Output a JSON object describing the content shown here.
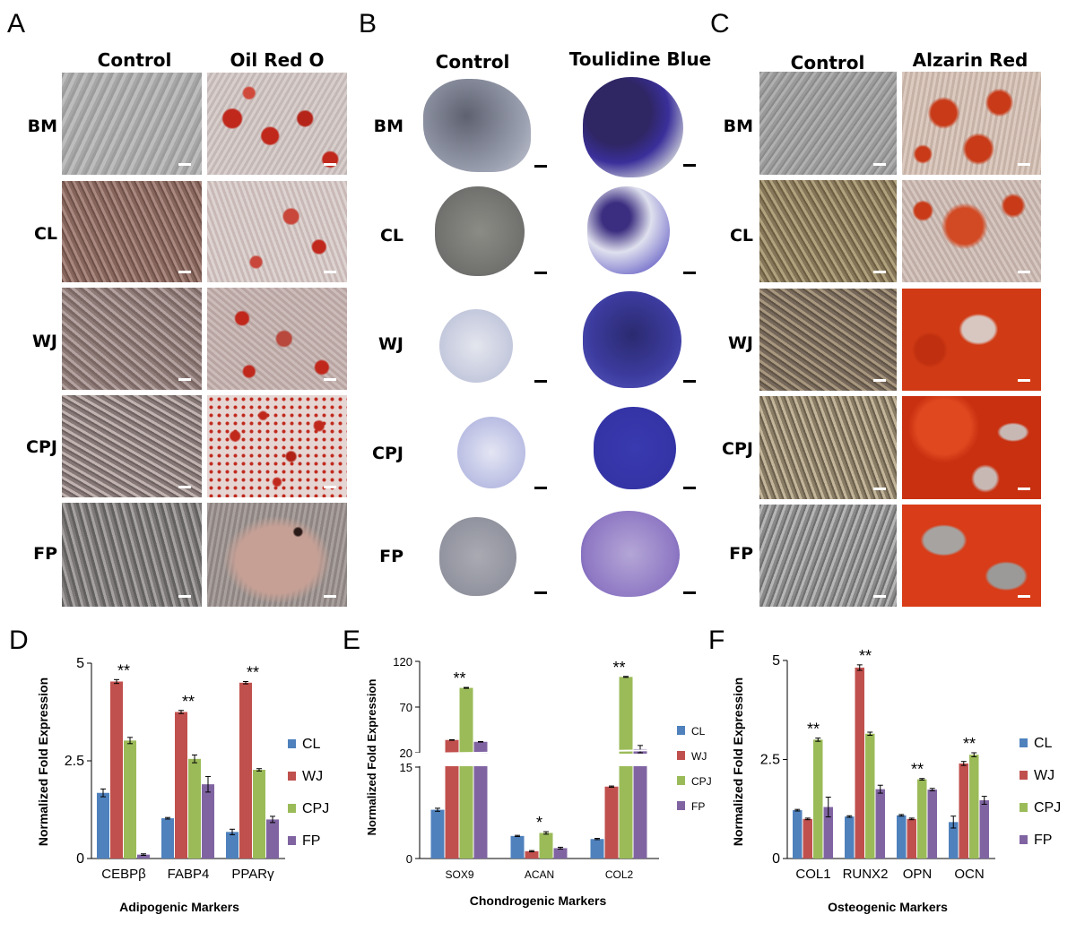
{
  "panels": {
    "A": {
      "letter": "A",
      "columns": [
        "Control",
        "Oil Red O"
      ],
      "rows": [
        "BM",
        "CL",
        "WJ",
        "CPJ",
        "FP"
      ]
    },
    "B": {
      "letter": "B",
      "columns": [
        "Control",
        "Toulidine Blue"
      ],
      "rows": [
        "BM",
        "CL",
        "WJ",
        "CPJ",
        "FP"
      ]
    },
    "C": {
      "letter": "C",
      "columns": [
        "Control",
        "Alzarin Red"
      ],
      "rows": [
        "BM",
        "CL",
        "WJ",
        "CPJ",
        "FP"
      ]
    },
    "D": {
      "letter": "D"
    },
    "E": {
      "letter": "E"
    },
    "F": {
      "letter": "F"
    }
  },
  "colors": {
    "CL": "#4F81BD",
    "WJ": "#C0504D",
    "CPJ": "#9BBB59",
    "FP": "#8064A2",
    "oil_red": "#c0281c",
    "toluidine": "#3a2f9a",
    "alizarin": "#d03010"
  },
  "chart_data": [
    {
      "panel": "D",
      "type": "bar",
      "categories": [
        "CEBPβ",
        "FABP4",
        "PPARγ"
      ],
      "series": [
        {
          "name": "CL",
          "values": [
            1.68,
            1.03,
            0.68
          ],
          "errors": [
            0.1,
            0.02,
            0.07
          ]
        },
        {
          "name": "WJ",
          "values": [
            4.53,
            3.75,
            4.5
          ],
          "errors": [
            0.05,
            0.04,
            0.03
          ]
        },
        {
          "name": "CPJ",
          "values": [
            3.02,
            2.55,
            2.27
          ],
          "errors": [
            0.08,
            0.1,
            0.03
          ]
        },
        {
          "name": "FP",
          "values": [
            0.1,
            1.9,
            1.0
          ],
          "errors": [
            0.02,
            0.2,
            0.08
          ]
        }
      ],
      "significance": [
        "**",
        "**",
        "**"
      ],
      "ylabel": "Normalized Fold Expression",
      "xlabel": "Adipogenic Markers",
      "ylim": [
        0,
        5
      ],
      "yticks": [
        "0",
        "2.5",
        "5"
      ],
      "legend": [
        "CL",
        "WJ",
        "CPJ",
        "FP"
      ]
    },
    {
      "panel": "E",
      "type": "bar",
      "categories": [
        "SOX9",
        "ACAN",
        "COL2"
      ],
      "series": [
        {
          "name": "CL",
          "values": [
            8,
            3.7,
            3.2
          ],
          "errors": [
            0.25,
            0.1,
            0.1
          ]
        },
        {
          "name": "WJ",
          "values": [
            34,
            1.2,
            11.8
          ],
          "errors": [
            0.3,
            0.1,
            0.1
          ]
        },
        {
          "name": "CPJ",
          "values": [
            91,
            4.2,
            103
          ],
          "errors": [
            0.5,
            0.2,
            0.5
          ]
        },
        {
          "name": "FP",
          "values": [
            32,
            1.7,
            24
          ],
          "errors": [
            0.3,
            0.15,
            4
          ]
        }
      ],
      "significance": [
        "**",
        "*",
        "**"
      ],
      "ylabel": "Normalized Fold Expression",
      "xlabel": "Chondrogenic Markers",
      "axis_break": {
        "lower": [
          0,
          15
        ],
        "upper": [
          20,
          120
        ]
      },
      "yticks": [
        "0",
        "15",
        "20",
        "70",
        "120"
      ],
      "legend": [
        "CL",
        "WJ",
        "CPJ",
        "FP"
      ]
    },
    {
      "panel": "F",
      "type": "bar",
      "categories": [
        "COL1",
        "RUNX2",
        "OPN",
        "OCN"
      ],
      "series": [
        {
          "name": "CL",
          "values": [
            1.22,
            1.06,
            1.09,
            0.92
          ],
          "errors": [
            0.02,
            0.02,
            0.02,
            0.15
          ]
        },
        {
          "name": "WJ",
          "values": [
            1.0,
            4.82,
            1.0,
            2.4
          ],
          "errors": [
            0.02,
            0.07,
            0.02,
            0.05
          ]
        },
        {
          "name": "CPJ",
          "values": [
            3.0,
            3.15,
            2.0,
            2.62
          ],
          "errors": [
            0.04,
            0.04,
            0.02,
            0.05
          ]
        },
        {
          "name": "FP",
          "values": [
            1.3,
            1.75,
            1.74,
            1.47
          ],
          "errors": [
            0.25,
            0.1,
            0.03,
            0.1
          ]
        }
      ],
      "significance": [
        "**",
        "**",
        "**",
        "**"
      ],
      "ylabel": "Normalized Fold Expression",
      "xlabel": "Osteogenic Markers",
      "ylim": [
        0,
        5
      ],
      "yticks": [
        "0",
        "2.5",
        "5"
      ],
      "legend": [
        "CL",
        "WJ",
        "CPJ",
        "FP"
      ]
    }
  ]
}
